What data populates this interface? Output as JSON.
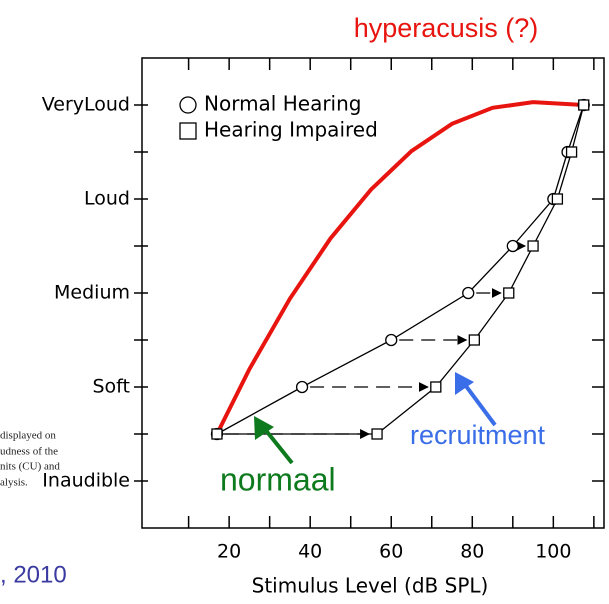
{
  "chart_data": {
    "type": "line",
    "title": "hyperacusis (?)",
    "x_label": "Stimulus Level (dB SPL)",
    "xlim": [
      -1.5,
      112.5
    ],
    "ylim": [
      -5,
      45
    ],
    "xticks": [
      20,
      40,
      60,
      80,
      100
    ],
    "xminorticks": [
      10,
      30,
      50,
      70,
      90,
      110
    ],
    "yticks": [
      {
        "value": 0,
        "label": "Inaudible"
      },
      {
        "value": 10,
        "label": "Soft"
      },
      {
        "value": 20,
        "label": "Medium"
      },
      {
        "value": 30,
        "label": "Loud"
      },
      {
        "value": 40,
        "label": "VeryLoud"
      }
    ],
    "yminorticks": [
      5,
      15,
      25,
      35
    ],
    "series": [
      {
        "name": "Normal Hearing",
        "color": "#000000",
        "marker": "circle",
        "x": [
          17,
          38,
          60,
          79,
          90,
          100,
          103.5,
          107.5
        ],
        "values": [
          5,
          10,
          15,
          20,
          25,
          30,
          35,
          40
        ]
      },
      {
        "name": "Hearing Impaired",
        "color": "#000000",
        "marker": "square",
        "x": [
          17,
          56.5,
          71,
          80.5,
          89,
          95,
          101,
          104.5,
          107.5
        ],
        "values": [
          5,
          5,
          10,
          15,
          20,
          25,
          30,
          35,
          40
        ]
      }
    ],
    "curve": {
      "color": "#e8140f",
      "x": [
        17,
        25,
        35,
        45,
        55,
        65,
        75,
        85,
        95,
        107.5
      ],
      "values": [
        5,
        11.9,
        19.4,
        25.8,
        31,
        35.1,
        38,
        39.7,
        40.3,
        40
      ]
    },
    "annotations": [
      {
        "text": "recruitment",
        "color": "#3a6ee8"
      },
      {
        "text": "normaal",
        "color": "#0e7a1e"
      }
    ],
    "side_text": [
      "displayed on",
      "udness of the",
      "nits (CU) and",
      "alysis."
    ],
    "footer": ", 2010"
  }
}
